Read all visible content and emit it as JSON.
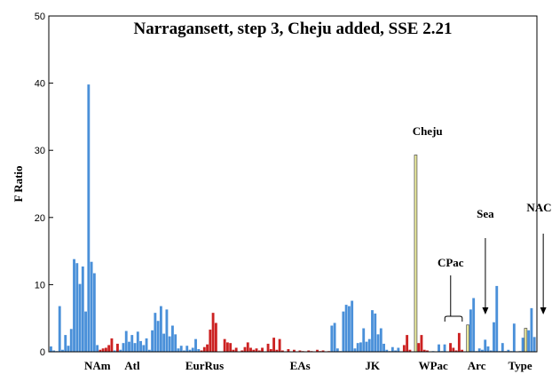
{
  "chart_data": {
    "type": "bar",
    "title": "Narragansett, step 3, Cheju added, SSE 2.21",
    "ylabel": "F Ratio",
    "xlabel": "",
    "ylim": [
      0,
      50
    ],
    "yticks": [
      0,
      10,
      20,
      30,
      40,
      50
    ],
    "grid": false,
    "colors": {
      "blue": "#4a90d9",
      "red": "#cc2222",
      "yellow": "#f2f2a0"
    },
    "groups": [
      {
        "label": "NAm",
        "center_bar": 16
      },
      {
        "label": "Atl",
        "center_bar": 28
      },
      {
        "label": "EurRus",
        "center_bar": 53
      },
      {
        "label": "EAs",
        "center_bar": 86
      },
      {
        "label": "JK",
        "center_bar": 111
      },
      {
        "label": "WPac",
        "center_bar": 132
      },
      {
        "label": "Arc",
        "center_bar": 147
      },
      {
        "label": "Type",
        "center_bar": 162
      }
    ],
    "annotations": [
      {
        "label": "Cheju",
        "bar": 130,
        "arrow": false
      },
      {
        "label": "CPac",
        "bar": 138,
        "arrow": false,
        "bracket": [
          136,
          142
        ]
      },
      {
        "label": "Sea",
        "bar": 150,
        "arrow": true
      },
      {
        "label": "NACC",
        "bar": 170,
        "arrow": true
      }
    ],
    "bars": [
      {
        "v": 0.8,
        "c": "b"
      },
      {
        "v": 0.2,
        "c": "b"
      },
      {
        "v": 0.1,
        "c": "b"
      },
      {
        "v": 6.8,
        "c": "b"
      },
      {
        "v": 0.3,
        "c": "b"
      },
      {
        "v": 2.5,
        "c": "b"
      },
      {
        "v": 0.9,
        "c": "b"
      },
      {
        "v": 3.4,
        "c": "b"
      },
      {
        "v": 13.8,
        "c": "b"
      },
      {
        "v": 13.2,
        "c": "b"
      },
      {
        "v": 10.1,
        "c": "b"
      },
      {
        "v": 12.7,
        "c": "b"
      },
      {
        "v": 6.0,
        "c": "b"
      },
      {
        "v": 39.8,
        "c": "b"
      },
      {
        "v": 13.4,
        "c": "b"
      },
      {
        "v": 11.7,
        "c": "b"
      },
      {
        "v": 1.0,
        "c": "b"
      },
      {
        "v": 0.3,
        "c": "r"
      },
      {
        "v": 0.5,
        "c": "r"
      },
      {
        "v": 0.6,
        "c": "r"
      },
      {
        "v": 1.0,
        "c": "r"
      },
      {
        "v": 2.0,
        "c": "r"
      },
      {
        "v": 0.2,
        "c": "b"
      },
      {
        "v": 1.2,
        "c": "r"
      },
      {
        "v": 0.3,
        "c": "b"
      },
      {
        "v": 1.3,
        "c": "b"
      },
      {
        "v": 3.1,
        "c": "b"
      },
      {
        "v": 1.5,
        "c": "b"
      },
      {
        "v": 2.5,
        "c": "b"
      },
      {
        "v": 1.3,
        "c": "b"
      },
      {
        "v": 3.0,
        "c": "b"
      },
      {
        "v": 1.6,
        "c": "b"
      },
      {
        "v": 1.0,
        "c": "b"
      },
      {
        "v": 2.0,
        "c": "b"
      },
      {
        "v": 0.3,
        "c": "b"
      },
      {
        "v": 3.2,
        "c": "b"
      },
      {
        "v": 5.8,
        "c": "b"
      },
      {
        "v": 4.6,
        "c": "b"
      },
      {
        "v": 6.8,
        "c": "b"
      },
      {
        "v": 2.7,
        "c": "b"
      },
      {
        "v": 6.3,
        "c": "b"
      },
      {
        "v": 2.3,
        "c": "b"
      },
      {
        "v": 3.9,
        "c": "b"
      },
      {
        "v": 2.6,
        "c": "b"
      },
      {
        "v": 0.5,
        "c": "b"
      },
      {
        "v": 0.9,
        "c": "b"
      },
      {
        "v": 0.2,
        "c": "b"
      },
      {
        "v": 0.9,
        "c": "b"
      },
      {
        "v": 0.3,
        "c": "b"
      },
      {
        "v": 0.6,
        "c": "b"
      },
      {
        "v": 1.9,
        "c": "b"
      },
      {
        "v": 0.4,
        "c": "b"
      },
      {
        "v": 0.2,
        "c": "r"
      },
      {
        "v": 0.7,
        "c": "r"
      },
      {
        "v": 1.1,
        "c": "r"
      },
      {
        "v": 3.3,
        "c": "r"
      },
      {
        "v": 5.8,
        "c": "r"
      },
      {
        "v": 4.3,
        "c": "r"
      },
      {
        "v": 0.0,
        "c": "r"
      },
      {
        "v": 0.0,
        "c": "r"
      },
      {
        "v": 1.9,
        "c": "r"
      },
      {
        "v": 1.4,
        "c": "r"
      },
      {
        "v": 1.3,
        "c": "r"
      },
      {
        "v": 0.3,
        "c": "r"
      },
      {
        "v": 0.6,
        "c": "r"
      },
      {
        "v": 0.0,
        "c": "r"
      },
      {
        "v": 0.2,
        "c": "r"
      },
      {
        "v": 0.7,
        "c": "r"
      },
      {
        "v": 1.4,
        "c": "r"
      },
      {
        "v": 0.6,
        "c": "r"
      },
      {
        "v": 0.3,
        "c": "r"
      },
      {
        "v": 0.5,
        "c": "r"
      },
      {
        "v": 0.2,
        "c": "r"
      },
      {
        "v": 0.6,
        "c": "r"
      },
      {
        "v": 0.0,
        "c": "r"
      },
      {
        "v": 1.2,
        "c": "r"
      },
      {
        "v": 0.4,
        "c": "r"
      },
      {
        "v": 2.1,
        "c": "r"
      },
      {
        "v": 0.3,
        "c": "r"
      },
      {
        "v": 1.9,
        "c": "r"
      },
      {
        "v": 0.2,
        "c": "r"
      },
      {
        "v": 0.0,
        "c": "r"
      },
      {
        "v": 0.4,
        "c": "r"
      },
      {
        "v": 0.0,
        "c": "r"
      },
      {
        "v": 0.3,
        "c": "r"
      },
      {
        "v": 0.0,
        "c": "r"
      },
      {
        "v": 0.2,
        "c": "r"
      },
      {
        "v": 0.1,
        "c": "r"
      },
      {
        "v": 0.0,
        "c": "r"
      },
      {
        "v": 0.2,
        "c": "r"
      },
      {
        "v": 0.1,
        "c": "r"
      },
      {
        "v": 0.0,
        "c": "r"
      },
      {
        "v": 0.3,
        "c": "r"
      },
      {
        "v": 0.1,
        "c": "r"
      },
      {
        "v": 0.2,
        "c": "r"
      },
      {
        "v": 0.0,
        "c": "r"
      },
      {
        "v": 0.1,
        "c": "r"
      },
      {
        "v": 3.9,
        "c": "b"
      },
      {
        "v": 4.3,
        "c": "b"
      },
      {
        "v": 0.5,
        "c": "b"
      },
      {
        "v": 0.1,
        "c": "b"
      },
      {
        "v": 6.0,
        "c": "b"
      },
      {
        "v": 7.0,
        "c": "b"
      },
      {
        "v": 6.8,
        "c": "b"
      },
      {
        "v": 7.6,
        "c": "b"
      },
      {
        "v": 0.5,
        "c": "b"
      },
      {
        "v": 1.3,
        "c": "b"
      },
      {
        "v": 1.4,
        "c": "b"
      },
      {
        "v": 3.5,
        "c": "b"
      },
      {
        "v": 1.5,
        "c": "b"
      },
      {
        "v": 1.9,
        "c": "b"
      },
      {
        "v": 6.2,
        "c": "b"
      },
      {
        "v": 5.7,
        "c": "b"
      },
      {
        "v": 2.6,
        "c": "b"
      },
      {
        "v": 3.5,
        "c": "b"
      },
      {
        "v": 1.2,
        "c": "b"
      },
      {
        "v": 0.3,
        "c": "b"
      },
      {
        "v": 0.1,
        "c": "b"
      },
      {
        "v": 0.7,
        "c": "b"
      },
      {
        "v": 0.2,
        "c": "b"
      },
      {
        "v": 0.6,
        "c": "b"
      },
      {
        "v": 0.0,
        "c": "r"
      },
      {
        "v": 1.0,
        "c": "r"
      },
      {
        "v": 2.5,
        "c": "r"
      },
      {
        "v": 0.3,
        "c": "r"
      },
      {
        "v": 0.0,
        "c": "r"
      },
      {
        "v": 29.3,
        "c": "y"
      },
      {
        "v": 1.3,
        "c": "r"
      },
      {
        "v": 2.5,
        "c": "r"
      },
      {
        "v": 0.3,
        "c": "r"
      },
      {
        "v": 0.2,
        "c": "r"
      },
      {
        "v": 0.0,
        "c": "b"
      },
      {
        "v": 0.1,
        "c": "b"
      },
      {
        "v": 0.0,
        "c": "b"
      },
      {
        "v": 1.1,
        "c": "b"
      },
      {
        "v": 0.1,
        "c": "b"
      },
      {
        "v": 1.1,
        "c": "b"
      },
      {
        "v": 0.0,
        "c": "b"
      },
      {
        "v": 1.3,
        "c": "r"
      },
      {
        "v": 0.6,
        "c": "r"
      },
      {
        "v": 0.2,
        "c": "r"
      },
      {
        "v": 2.8,
        "c": "r"
      },
      {
        "v": 0.3,
        "c": "r"
      },
      {
        "v": 0.0,
        "c": "r"
      },
      {
        "v": 4.0,
        "c": "y"
      },
      {
        "v": 6.3,
        "c": "b"
      },
      {
        "v": 8.0,
        "c": "b"
      },
      {
        "v": 0.1,
        "c": "b"
      },
      {
        "v": 0.5,
        "c": "b"
      },
      {
        "v": 0.3,
        "c": "b"
      },
      {
        "v": 1.8,
        "c": "b"
      },
      {
        "v": 0.8,
        "c": "b"
      },
      {
        "v": 0.2,
        "c": "b"
      },
      {
        "v": 4.4,
        "c": "b"
      },
      {
        "v": 9.8,
        "c": "b"
      },
      {
        "v": 0.1,
        "c": "b"
      },
      {
        "v": 1.3,
        "c": "b"
      },
      {
        "v": 0.1,
        "c": "b"
      },
      {
        "v": 0.3,
        "c": "b"
      },
      {
        "v": 0.1,
        "c": "b"
      },
      {
        "v": 4.2,
        "c": "b"
      },
      {
        "v": 0.0,
        "c": "b"
      },
      {
        "v": 0.1,
        "c": "b"
      },
      {
        "v": 2.1,
        "c": "b"
      },
      {
        "v": 3.5,
        "c": "y"
      },
      {
        "v": 3.2,
        "c": "b"
      },
      {
        "v": 6.5,
        "c": "b"
      },
      {
        "v": 2.2,
        "c": "b"
      }
    ]
  }
}
